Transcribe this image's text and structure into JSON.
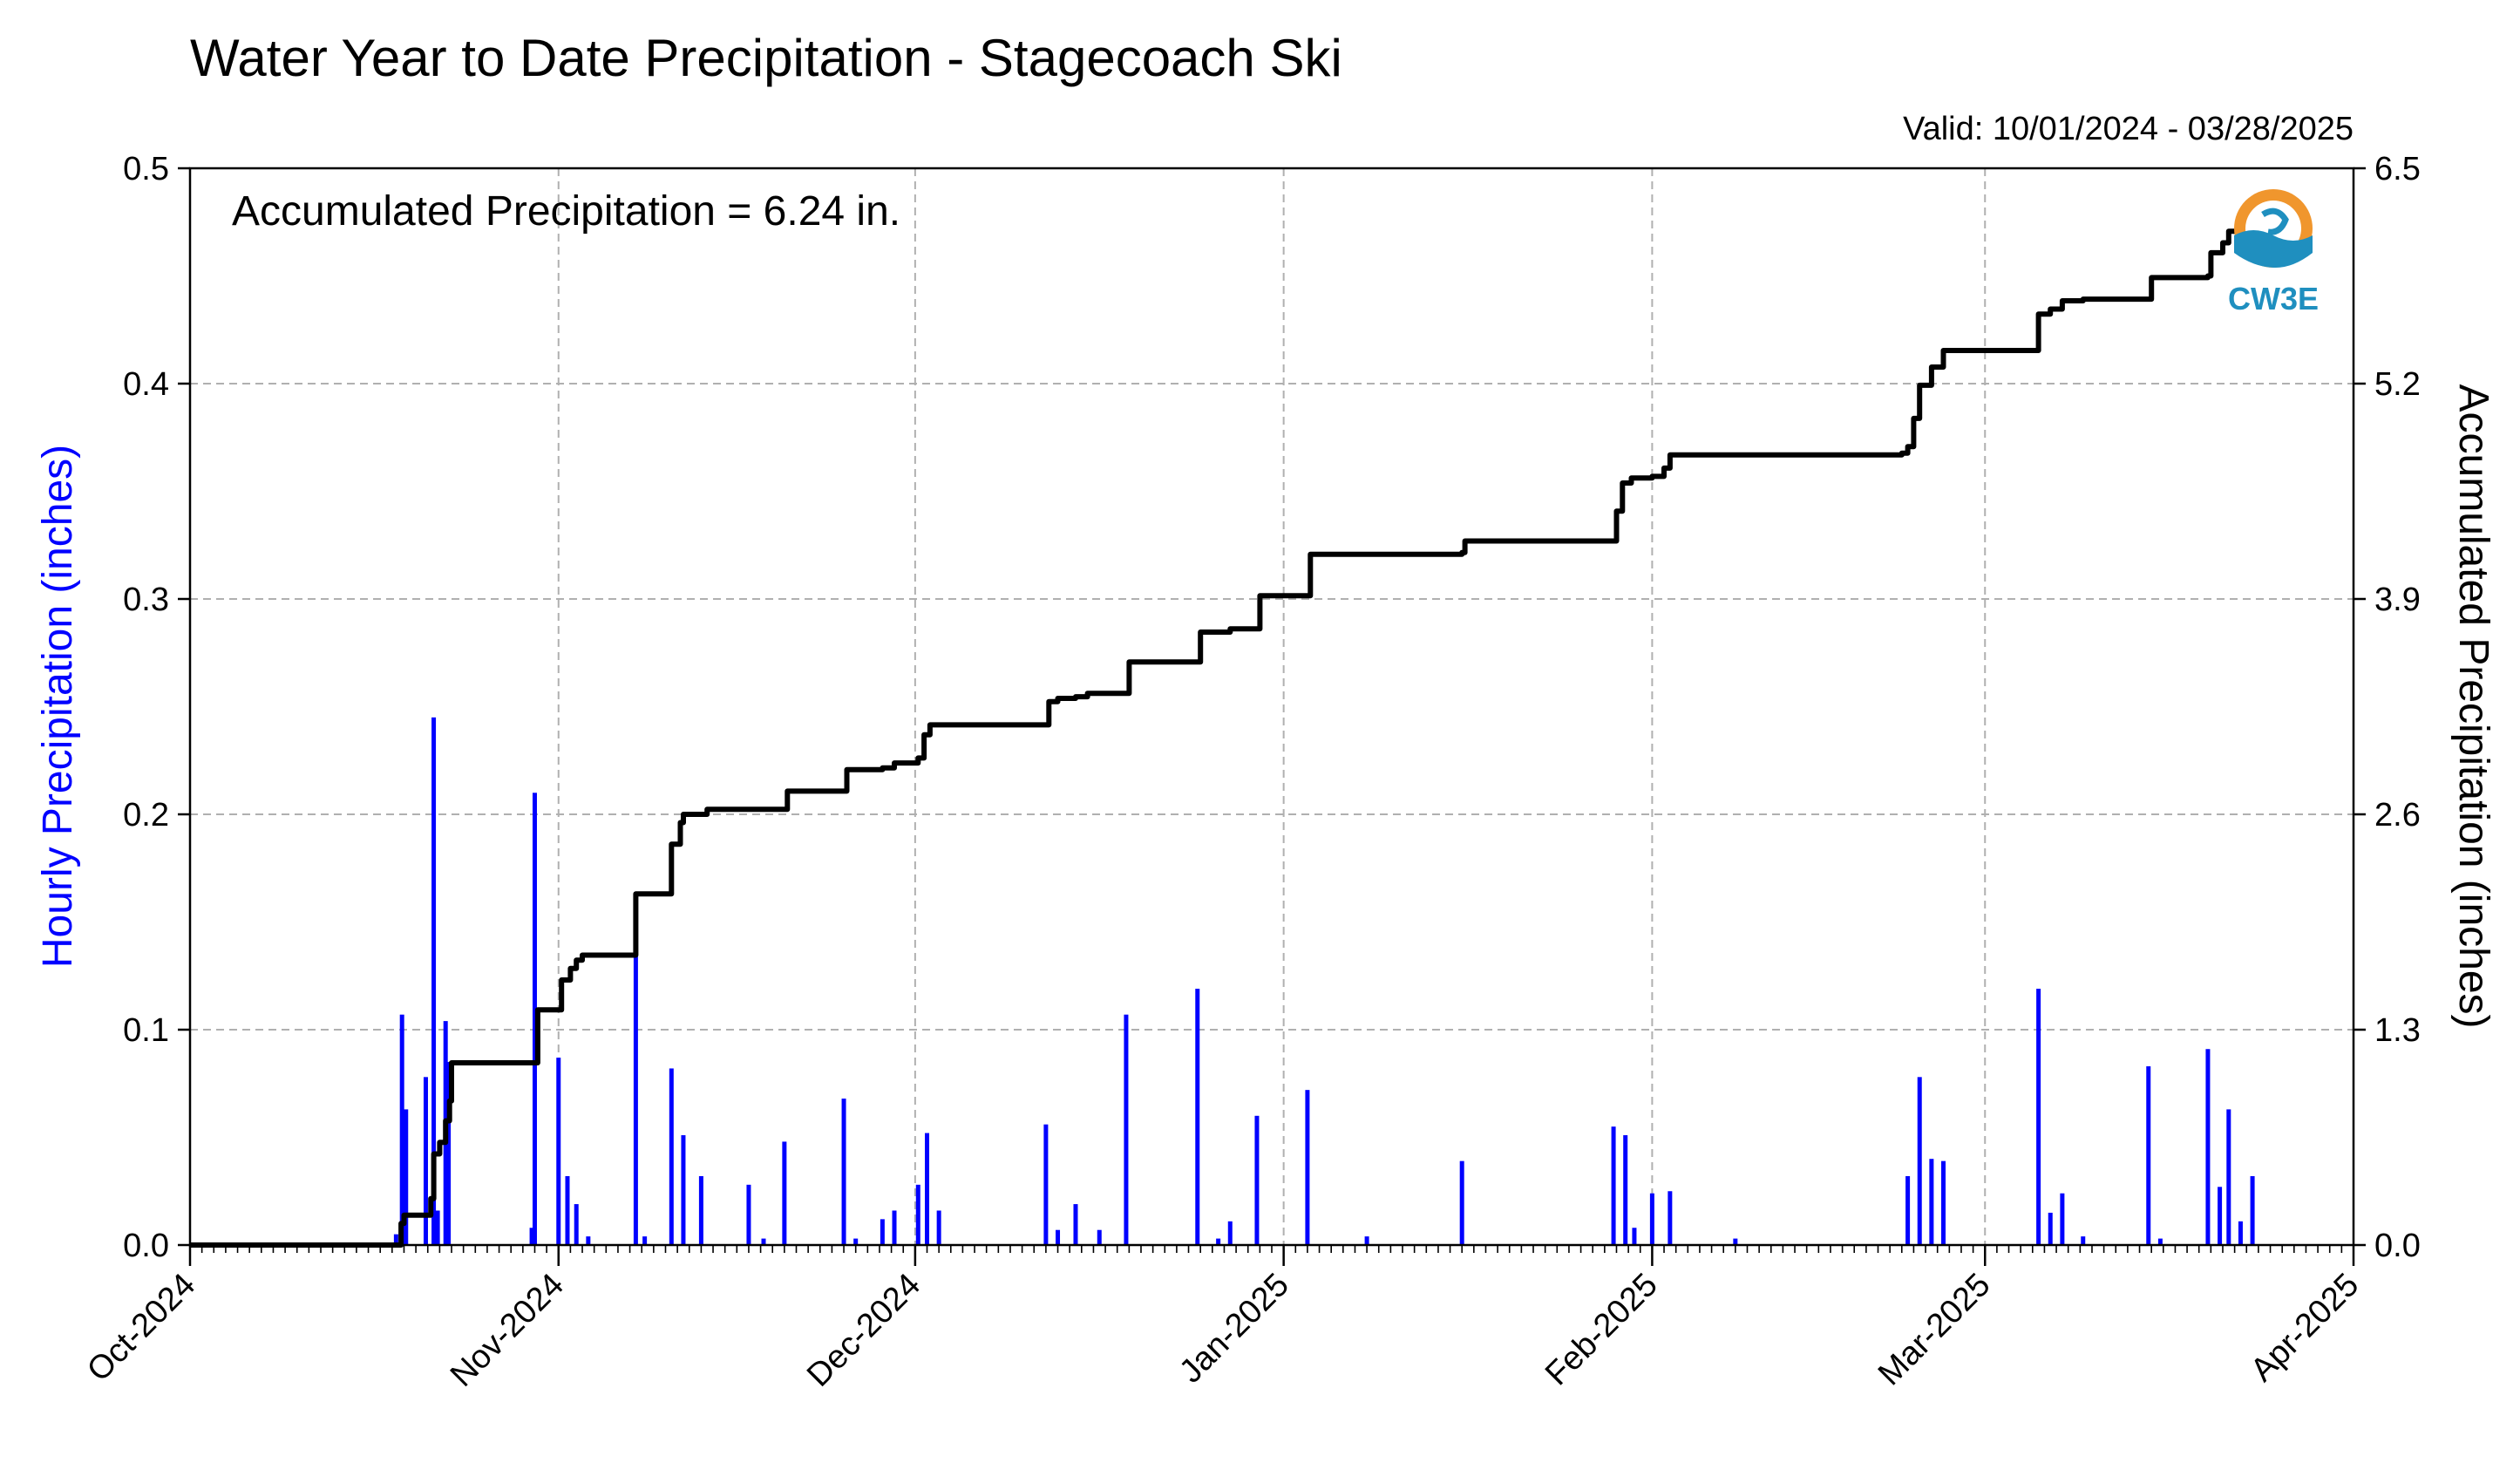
{
  "chart_data": {
    "type": "bar+line",
    "title": "Water Year to Date Precipitation - Stagecoach Ski",
    "valid_range": "Valid: 10/01/2024 - 03/28/2025",
    "annotation": "Accumulated Precipitation = 6.24 in.",
    "ylabel_left": "Hourly Precipitation (inches)",
    "ylabel_right": "Accumulated Precipitation (inches)",
    "ylim_left": [
      0,
      0.5
    ],
    "ylim_right": [
      0,
      6.5
    ],
    "yticks_left": [
      "0.0",
      "0.1",
      "0.2",
      "0.3",
      "0.4",
      "0.5"
    ],
    "yticks_right": [
      "0.0",
      "1.3",
      "2.6",
      "3.9",
      "5.2",
      "6.5"
    ],
    "x_domain": [
      "2024-10-01",
      "2025-04-01"
    ],
    "x_tick_labels": [
      {
        "label": "Oct-2024",
        "date": "2024-10-01"
      },
      {
        "label": "Nov-2024",
        "date": "2024-11-01"
      },
      {
        "label": "Dec-2024",
        "date": "2024-12-01"
      },
      {
        "label": "Jan-2025",
        "date": "2025-01-01"
      },
      {
        "label": "Feb-2025",
        "date": "2025-02-01"
      },
      {
        "label": "Mar-2025",
        "date": "2025-03-01"
      },
      {
        "label": "Apr-2025",
        "date": "2025-04-01"
      }
    ],
    "grid": true,
    "series": [
      {
        "name": "Hourly Precipitation",
        "kind": "bar",
        "color": "#0000ff",
        "points": [
          [
            "2024-10-18T08",
            0.005
          ],
          [
            "2024-10-18T20",
            0.107
          ],
          [
            "2024-10-19T04",
            0.063
          ],
          [
            "2024-10-20T20",
            0.078
          ],
          [
            "2024-10-21T12",
            0.245
          ],
          [
            "2024-10-21T20",
            0.016
          ],
          [
            "2024-10-22T12",
            0.104
          ],
          [
            "2024-10-22T18",
            0.085
          ],
          [
            "2024-10-29T18",
            0.008
          ],
          [
            "2024-10-30T00",
            0.21
          ],
          [
            "2024-11-01T00",
            0.087
          ],
          [
            "2024-11-01T18",
            0.032
          ],
          [
            "2024-11-02T12",
            0.019
          ],
          [
            "2024-11-03T12",
            0.004
          ],
          [
            "2024-11-07T12",
            0.135
          ],
          [
            "2024-11-08T06",
            0.004
          ],
          [
            "2024-11-10T12",
            0.082
          ],
          [
            "2024-11-11T12",
            0.051
          ],
          [
            "2024-11-13T00",
            0.032
          ],
          [
            "2024-11-17T00",
            0.028
          ],
          [
            "2024-11-18T06",
            0.003
          ],
          [
            "2024-11-20T00",
            0.048
          ],
          [
            "2024-11-25T00",
            0.068
          ],
          [
            "2024-11-26T00",
            0.003
          ],
          [
            "2024-11-28T06",
            0.012
          ],
          [
            "2024-11-29T06",
            0.016
          ],
          [
            "2024-12-01T06",
            0.028
          ],
          [
            "2024-12-02T00",
            0.052
          ],
          [
            "2024-12-03T00",
            0.016
          ],
          [
            "2024-12-12T00",
            0.056
          ],
          [
            "2024-12-13T00",
            0.007
          ],
          [
            "2024-12-14T12",
            0.019
          ],
          [
            "2024-12-16T12",
            0.007
          ],
          [
            "2024-12-18T18",
            0.107
          ],
          [
            "2024-12-24T18",
            0.119
          ],
          [
            "2024-12-26T12",
            0.003
          ],
          [
            "2024-12-27T12",
            0.011
          ],
          [
            "2024-12-29T18",
            0.06
          ],
          [
            "2025-01-03T00",
            0.072
          ],
          [
            "2025-01-08T00",
            0.004
          ],
          [
            "2025-01-16T00",
            0.039
          ],
          [
            "2025-01-28T18",
            0.055
          ],
          [
            "2025-01-29T18",
            0.051
          ],
          [
            "2025-01-30T12",
            0.008
          ],
          [
            "2025-02-01T00",
            0.024
          ],
          [
            "2025-02-02T12",
            0.025
          ],
          [
            "2025-02-08T00",
            0.003
          ],
          [
            "2025-02-22T12",
            0.032
          ],
          [
            "2025-02-23T12",
            0.078
          ],
          [
            "2025-02-24T12",
            0.04
          ],
          [
            "2025-02-25T12",
            0.039
          ],
          [
            "2025-03-05T12",
            0.119
          ],
          [
            "2025-03-06T12",
            0.015
          ],
          [
            "2025-03-07T12",
            0.024
          ],
          [
            "2025-03-09T06",
            0.004
          ],
          [
            "2025-03-14T18",
            0.083
          ],
          [
            "2025-03-15T18",
            0.003
          ],
          [
            "2025-03-19T18",
            0.091
          ],
          [
            "2025-03-20T18",
            0.027
          ],
          [
            "2025-03-21T12",
            0.063
          ],
          [
            "2025-03-22T12",
            0.011
          ],
          [
            "2025-03-23T12",
            0.032
          ]
        ]
      },
      {
        "name": "Accumulated Precipitation",
        "kind": "step-line",
        "color": "#000000",
        "points": [
          [
            "2024-10-01T00",
            0.0
          ],
          [
            "2024-10-18T04",
            0.0
          ],
          [
            "2024-10-18T18",
            0.13
          ],
          [
            "2024-10-19T00",
            0.18
          ],
          [
            "2024-10-20T20",
            0.18
          ],
          [
            "2024-10-21T06",
            0.28
          ],
          [
            "2024-10-21T12",
            0.55
          ],
          [
            "2024-10-22T00",
            0.62
          ],
          [
            "2024-10-22T12",
            0.75
          ],
          [
            "2024-10-22T20",
            0.87
          ],
          [
            "2024-10-23T00",
            1.1
          ],
          [
            "2024-10-30T00",
            1.1
          ],
          [
            "2024-10-30T06",
            1.42
          ],
          [
            "2024-11-01T00",
            1.42
          ],
          [
            "2024-11-01T06",
            1.6
          ],
          [
            "2024-11-02T00",
            1.67
          ],
          [
            "2024-11-02T12",
            1.72
          ],
          [
            "2024-11-03T00",
            1.75
          ],
          [
            "2024-11-07T06",
            1.75
          ],
          [
            "2024-11-07T12",
            2.12
          ],
          [
            "2024-11-10T06",
            2.12
          ],
          [
            "2024-11-10T12",
            2.42
          ],
          [
            "2024-11-11T06",
            2.55
          ],
          [
            "2024-11-11T12",
            2.6
          ],
          [
            "2024-11-13T00",
            2.6
          ],
          [
            "2024-11-13T12",
            2.63
          ],
          [
            "2024-11-20T00",
            2.63
          ],
          [
            "2024-11-20T06",
            2.74
          ],
          [
            "2024-11-25T00",
            2.74
          ],
          [
            "2024-11-25T06",
            2.87
          ],
          [
            "2024-11-28T06",
            2.88
          ],
          [
            "2024-11-29T06",
            2.91
          ],
          [
            "2024-12-01T06",
            2.94
          ],
          [
            "2024-12-01T18",
            3.08
          ],
          [
            "2024-12-02T06",
            3.14
          ],
          [
            "2024-12-12T00",
            3.14
          ],
          [
            "2024-12-12T06",
            3.28
          ],
          [
            "2024-12-13T00",
            3.3
          ],
          [
            "2024-12-14T12",
            3.31
          ],
          [
            "2024-12-15T12",
            3.33
          ],
          [
            "2024-12-18T18",
            3.33
          ],
          [
            "2024-12-19T00",
            3.52
          ],
          [
            "2024-12-24T18",
            3.52
          ],
          [
            "2024-12-25T00",
            3.7
          ],
          [
            "2024-12-27T12",
            3.72
          ],
          [
            "2024-12-29T18",
            3.72
          ],
          [
            "2024-12-30T00",
            3.92
          ],
          [
            "2025-01-03T00",
            3.92
          ],
          [
            "2025-01-03T06",
            4.17
          ],
          [
            "2025-01-16T00",
            4.18
          ],
          [
            "2025-01-16T06",
            4.25
          ],
          [
            "2025-01-28T18",
            4.25
          ],
          [
            "2025-01-29T00",
            4.43
          ],
          [
            "2025-01-29T12",
            4.6
          ],
          [
            "2025-01-30T06",
            4.63
          ],
          [
            "2025-02-01T00",
            4.64
          ],
          [
            "2025-02-02T00",
            4.69
          ],
          [
            "2025-02-02T12",
            4.77
          ],
          [
            "2025-02-22T00",
            4.78
          ],
          [
            "2025-02-22T12",
            4.82
          ],
          [
            "2025-02-23T00",
            4.99
          ],
          [
            "2025-02-23T12",
            5.19
          ],
          [
            "2025-02-24T12",
            5.3
          ],
          [
            "2025-02-25T12",
            5.4
          ],
          [
            "2025-03-05T00",
            5.4
          ],
          [
            "2025-03-05T12",
            5.62
          ],
          [
            "2025-03-06T12",
            5.65
          ],
          [
            "2025-03-07T12",
            5.7
          ],
          [
            "2025-03-09T06",
            5.71
          ],
          [
            "2025-03-14T18",
            5.71
          ],
          [
            "2025-03-15T00",
            5.84
          ],
          [
            "2025-03-19T18",
            5.85
          ],
          [
            "2025-03-20T00",
            5.99
          ],
          [
            "2025-03-21T00",
            6.05
          ],
          [
            "2025-03-21T12",
            6.12
          ],
          [
            "2025-03-22T12",
            6.14
          ],
          [
            "2025-03-23T12",
            6.22
          ],
          [
            "2025-03-25T00",
            6.24
          ],
          [
            "2025-03-28T00",
            6.24
          ]
        ]
      }
    ]
  },
  "logo": {
    "text": "CW3E",
    "colors": {
      "ring": "#f0962d",
      "water": "#1f8fbf",
      "text": "#1f8fbf"
    }
  }
}
